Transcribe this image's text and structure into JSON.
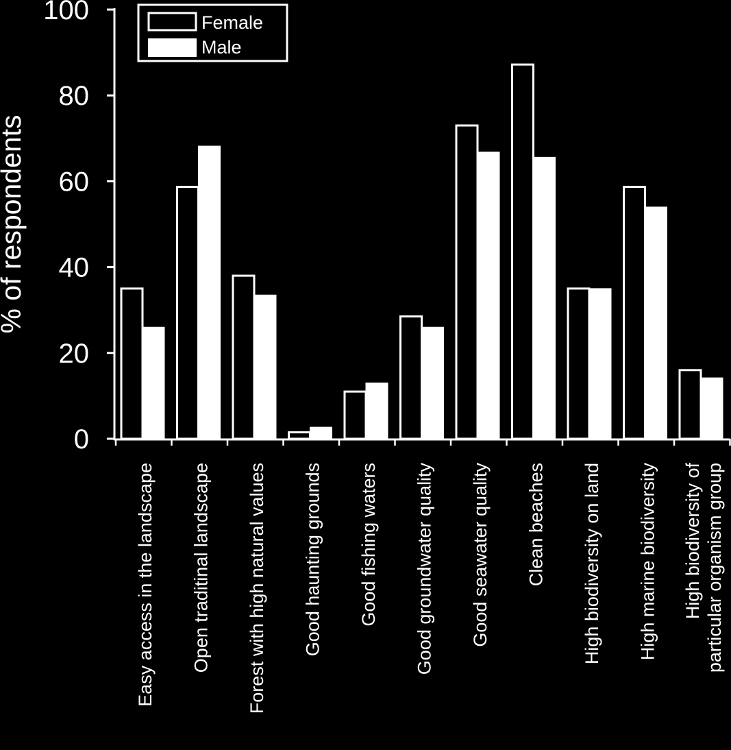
{
  "chart_data": {
    "type": "bar",
    "title": "",
    "xlabel": "",
    "ylabel": "% of respondents",
    "ylim": [
      0,
      100
    ],
    "yticks": [
      0,
      20,
      40,
      60,
      80,
      100
    ],
    "grid": false,
    "legend_position": "top-left",
    "categories": [
      "Easy access in the landscape",
      "Open traditinal landscape",
      "Forest with high natural values",
      "Good haunting grounds",
      "Good fishing waters",
      "Good groundwater quality",
      "Good seawater quality",
      "Clean beaches",
      "High biodiversity on land",
      "High marine biodiversity",
      "High biodiversity of particular organism group"
    ],
    "series": [
      {
        "name": "Female",
        "style": "outline",
        "values": [
          35,
          58.7,
          38,
          1.5,
          11,
          28.5,
          73,
          87.2,
          35,
          58.7,
          16
        ]
      },
      {
        "name": "Male",
        "style": "filled",
        "values": [
          26,
          68.2,
          33.5,
          2.7,
          13,
          26,
          66.8,
          65.6,
          35,
          54,
          14.2
        ]
      }
    ],
    "colors": {
      "background": "#000000",
      "foreground": "#ffffff"
    }
  }
}
